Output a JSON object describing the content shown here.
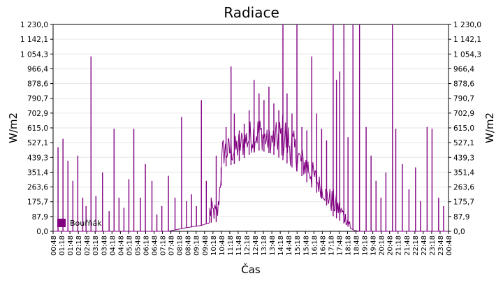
{
  "chart_data": {
    "type": "line",
    "title": "Radiace",
    "xlabel": "Čas",
    "ylabel": "W/m2",
    "ylabel_right": "W/m2",
    "ylim": [
      0,
      1230
    ],
    "yticks": [
      "0,0",
      "87,9",
      "175,7",
      "263,6",
      "351,4",
      "439,3",
      "527,1",
      "615,0",
      "702,9",
      "790,7",
      "878,6",
      "966,4",
      "1 054,3",
      "1 142,1",
      "1 230,0"
    ],
    "ytick_values": [
      0,
      87.9,
      175.7,
      263.6,
      351.4,
      439.3,
      527.1,
      615.0,
      702.9,
      790.7,
      878.6,
      966.4,
      1054.3,
      1142.1,
      1230.0
    ],
    "xticks": [
      "00:48",
      "01:18",
      "01:48",
      "02:18",
      "02:48",
      "03:18",
      "03:48",
      "04:18",
      "04:48",
      "05:18",
      "05:48",
      "06:18",
      "06:48",
      "07:18",
      "07:48",
      "08:18",
      "08:48",
      "09:18",
      "09:48",
      "10:18",
      "10:48",
      "11:18",
      "11:48",
      "12:18",
      "12:48",
      "13:18",
      "13:48",
      "14:18",
      "14:48",
      "15:18",
      "15:48",
      "16:18",
      "16:48",
      "17:18",
      "17:48",
      "18:18",
      "18:48",
      "19:18",
      "19:48",
      "20:18",
      "20:48",
      "21:18",
      "21:48",
      "22:18",
      "22:48",
      "23:18",
      "23:48",
      "00:48"
    ],
    "grid": true,
    "legend_position": "bottom-left",
    "series": [
      {
        "name": "Bouřňák",
        "color": "#800080",
        "baseline": {
          "x": [
            0,
            7.0,
            8.0,
            9.0,
            9.3,
            9.5,
            10.0,
            10.3,
            11.0,
            11.5,
            12.0,
            12.5,
            13.0,
            13.5,
            14.0,
            14.5,
            15.0,
            15.5,
            16.0,
            16.5,
            16.8,
            17.0,
            17.3,
            17.6,
            18.0,
            18.3,
            18.6,
            24
          ],
          "y": [
            0,
            0,
            20,
            35,
            45,
            50,
            55,
            380,
            400,
            430,
            460,
            480,
            470,
            450,
            420,
            380,
            340,
            280,
            230,
            170,
            120,
            90,
            70,
            50,
            20,
            5,
            0,
            0
          ]
        },
        "noise": {
          "x": [
            9.5,
            10.0,
            10.3,
            11.0,
            11.5,
            12.0,
            12.5,
            13.0,
            13.5,
            14.0,
            14.5,
            15.0,
            15.5,
            16.0,
            16.5,
            17.0,
            17.5,
            18.0
          ],
          "y": [
            250,
            200,
            350,
            300,
            350,
            380,
            400,
            250,
            350,
            550,
            450,
            300,
            350,
            250,
            200,
            300,
            200,
            100
          ]
        },
        "spikes": [
          {
            "x": 0.3,
            "y": 500
          },
          {
            "x": 0.6,
            "y": 550
          },
          {
            "x": 0.9,
            "y": 420
          },
          {
            "x": 1.2,
            "y": 300
          },
          {
            "x": 1.5,
            "y": 450
          },
          {
            "x": 1.8,
            "y": 200
          },
          {
            "x": 2.0,
            "y": 150
          },
          {
            "x": 2.3,
            "y": 1040
          },
          {
            "x": 2.6,
            "y": 210
          },
          {
            "x": 3.0,
            "y": 350
          },
          {
            "x": 3.4,
            "y": 120
          },
          {
            "x": 3.7,
            "y": 610
          },
          {
            "x": 4.0,
            "y": 200
          },
          {
            "x": 4.3,
            "y": 140
          },
          {
            "x": 4.6,
            "y": 310
          },
          {
            "x": 4.9,
            "y": 610
          },
          {
            "x": 5.3,
            "y": 200
          },
          {
            "x": 5.6,
            "y": 400
          },
          {
            "x": 6.0,
            "y": 300
          },
          {
            "x": 6.3,
            "y": 100
          },
          {
            "x": 6.6,
            "y": 150
          },
          {
            "x": 7.0,
            "y": 330
          },
          {
            "x": 7.4,
            "y": 200
          },
          {
            "x": 7.8,
            "y": 680
          },
          {
            "x": 8.1,
            "y": 180
          },
          {
            "x": 8.4,
            "y": 220
          },
          {
            "x": 8.7,
            "y": 150
          },
          {
            "x": 9.0,
            "y": 780
          },
          {
            "x": 9.3,
            "y": 300
          },
          {
            "x": 9.6,
            "y": 200
          },
          {
            "x": 9.9,
            "y": 450
          },
          {
            "x": 10.2,
            "y": 380
          },
          {
            "x": 10.5,
            "y": 620
          },
          {
            "x": 10.8,
            "y": 980
          },
          {
            "x": 11.0,
            "y": 700
          },
          {
            "x": 11.3,
            "y": 600
          },
          {
            "x": 11.6,
            "y": 640
          },
          {
            "x": 11.9,
            "y": 720
          },
          {
            "x": 12.2,
            "y": 900
          },
          {
            "x": 12.5,
            "y": 820
          },
          {
            "x": 12.8,
            "y": 780
          },
          {
            "x": 13.1,
            "y": 860
          },
          {
            "x": 13.4,
            "y": 760
          },
          {
            "x": 13.7,
            "y": 720
          },
          {
            "x": 13.95,
            "y": 1230
          },
          {
            "x": 14.2,
            "y": 820
          },
          {
            "x": 14.5,
            "y": 700
          },
          {
            "x": 14.8,
            "y": 1230
          },
          {
            "x": 15.1,
            "y": 620
          },
          {
            "x": 15.4,
            "y": 600
          },
          {
            "x": 15.7,
            "y": 1040
          },
          {
            "x": 16.0,
            "y": 700
          },
          {
            "x": 16.3,
            "y": 610
          },
          {
            "x": 16.6,
            "y": 540
          },
          {
            "x": 17.0,
            "y": 1230
          },
          {
            "x": 17.2,
            "y": 900
          },
          {
            "x": 17.4,
            "y": 950
          },
          {
            "x": 17.65,
            "y": 1230
          },
          {
            "x": 17.9,
            "y": 560
          },
          {
            "x": 18.2,
            "y": 1230
          },
          {
            "x": 18.6,
            "y": 1230
          },
          {
            "x": 19.0,
            "y": 620
          },
          {
            "x": 19.3,
            "y": 450
          },
          {
            "x": 19.6,
            "y": 300
          },
          {
            "x": 19.9,
            "y": 200
          },
          {
            "x": 20.2,
            "y": 350
          },
          {
            "x": 20.6,
            "y": 1230
          },
          {
            "x": 20.8,
            "y": 610
          },
          {
            "x": 21.2,
            "y": 400
          },
          {
            "x": 21.6,
            "y": 250
          },
          {
            "x": 22.0,
            "y": 380
          },
          {
            "x": 22.3,
            "y": 180
          },
          {
            "x": 22.7,
            "y": 620
          },
          {
            "x": 23.0,
            "y": 610
          },
          {
            "x": 23.4,
            "y": 200
          },
          {
            "x": 23.7,
            "y": 150
          }
        ]
      }
    ]
  }
}
